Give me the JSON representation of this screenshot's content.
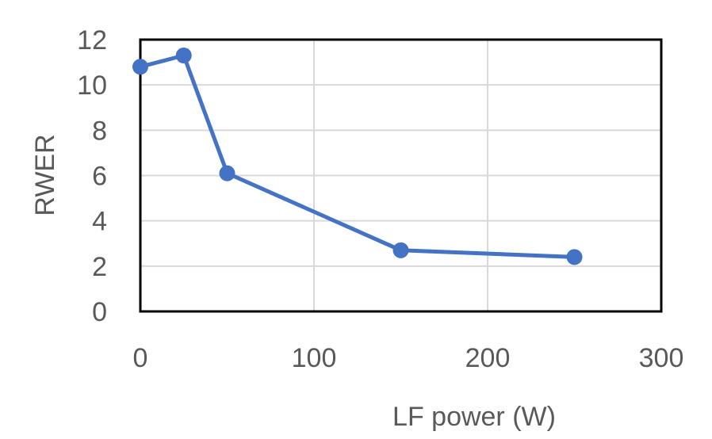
{
  "chart_data": {
    "type": "line",
    "title": "",
    "xlabel": "LF power (W)",
    "ylabel": "RWER",
    "xlim": [
      0,
      300
    ],
    "ylim": [
      0,
      12
    ],
    "x_ticks": [
      0,
      100,
      200,
      300
    ],
    "y_ticks": [
      0,
      2,
      4,
      6,
      8,
      10,
      12
    ],
    "grid": true,
    "legend": "none",
    "series": [
      {
        "color": "#4472C4",
        "x": [
          0,
          25,
          50,
          150,
          250
        ],
        "y": [
          10.8,
          11.3,
          6.1,
          2.7,
          2.4
        ]
      }
    ]
  }
}
